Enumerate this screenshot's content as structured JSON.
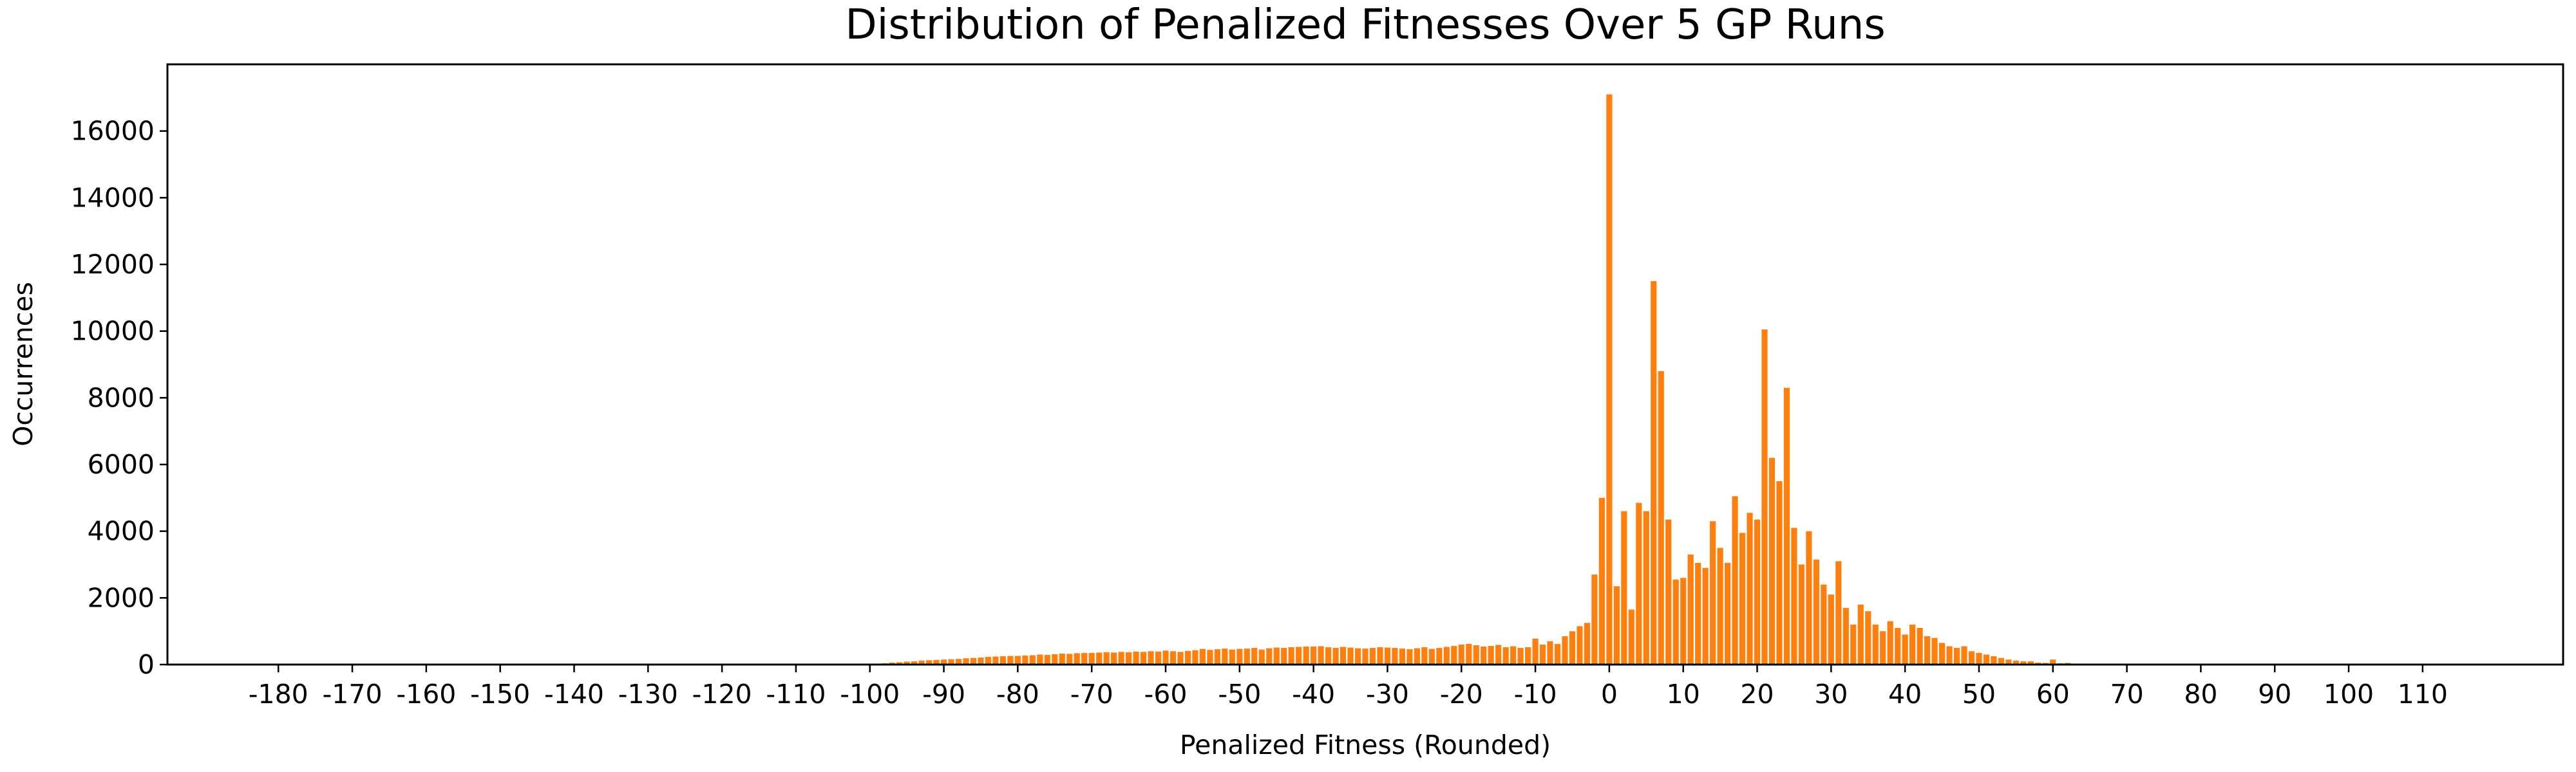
{
  "chart_data": {
    "type": "bar",
    "title": "Distribution of Penalized Fitnesses Over 5 GP Runs",
    "xlabel": "Penalized Fitness (Rounded)",
    "ylabel": "Occurrences",
    "color": "#ff7f0e",
    "x": [
      -100,
      -99,
      -98,
      -97,
      -96,
      -95,
      -94,
      -93,
      -92,
      -91,
      -90,
      -89,
      -88,
      -87,
      -86,
      -85,
      -84,
      -83,
      -82,
      -81,
      -80,
      -79,
      -78,
      -77,
      -76,
      -75,
      -74,
      -73,
      -72,
      -71,
      -70,
      -69,
      -68,
      -67,
      -66,
      -65,
      -64,
      -63,
      -62,
      -61,
      -60,
      -59,
      -58,
      -57,
      -56,
      -55,
      -54,
      -53,
      -52,
      -51,
      -50,
      -49,
      -48,
      -47,
      -46,
      -45,
      -44,
      -43,
      -42,
      -41,
      -40,
      -39,
      -38,
      -37,
      -36,
      -35,
      -34,
      -33,
      -32,
      -31,
      -30,
      -29,
      -28,
      -27,
      -26,
      -25,
      -24,
      -23,
      -22,
      -21,
      -20,
      -19,
      -18,
      -17,
      -16,
      -15,
      -14,
      -13,
      -12,
      -11,
      -10,
      -9,
      -8,
      -7,
      -6,
      -5,
      -4,
      -3,
      -2,
      -1,
      0,
      1,
      2,
      3,
      4,
      5,
      6,
      7,
      8,
      9,
      10,
      11,
      12,
      13,
      14,
      15,
      16,
      17,
      18,
      19,
      20,
      21,
      22,
      23,
      24,
      25,
      26,
      27,
      28,
      29,
      30,
      31,
      32,
      33,
      34,
      35,
      36,
      37,
      38,
      39,
      40,
      41,
      42,
      43,
      44,
      45,
      46,
      47,
      48,
      49,
      50,
      51,
      52,
      53,
      54,
      55,
      56,
      57,
      58,
      59,
      60,
      61,
      62,
      63,
      64,
      65,
      66,
      67,
      68,
      69,
      70
    ],
    "values": [
      20,
      30,
      40,
      60,
      70,
      90,
      100,
      120,
      130,
      140,
      150,
      160,
      170,
      190,
      200,
      210,
      230,
      240,
      250,
      260,
      260,
      270,
      280,
      300,
      290,
      310,
      330,
      320,
      340,
      350,
      350,
      360,
      370,
      360,
      380,
      370,
      390,
      380,
      400,
      390,
      420,
      400,
      380,
      410,
      430,
      470,
      440,
      460,
      480,
      450,
      470,
      480,
      500,
      450,
      490,
      510,
      500,
      520,
      530,
      540,
      540,
      550,
      520,
      500,
      530,
      510,
      490,
      480,
      500,
      520,
      510,
      500,
      480,
      460,
      490,
      520,
      470,
      500,
      530,
      560,
      600,
      620,
      580,
      540,
      560,
      590,
      520,
      550,
      500,
      520,
      780,
      600,
      700,
      620,
      850,
      1000,
      1150,
      1250,
      2700,
      5000,
      17100,
      2350,
      4600,
      1650,
      4850,
      4600,
      11500,
      8800,
      4350,
      2550,
      2600,
      3300,
      3050,
      2900,
      4300,
      3500,
      3050,
      5050,
      3950,
      4550,
      4350,
      10050,
      6200,
      5500,
      8300,
      4100,
      3000,
      4000,
      3150,
      2400,
      2100,
      3100,
      1700,
      1200,
      1800,
      1600,
      1200,
      1000,
      1300,
      1100,
      900,
      1200,
      1100,
      850,
      800,
      650,
      550,
      500,
      550,
      400,
      350,
      300,
      250,
      200,
      150,
      120,
      100,
      100,
      60,
      50,
      150,
      40,
      50,
      30,
      25,
      20,
      15,
      12,
      10,
      10,
      10
    ],
    "xlim": [
      -195,
      129
    ],
    "ylim": [
      0,
      18000
    ],
    "xticks": [
      -180,
      -170,
      -160,
      -150,
      -140,
      -130,
      -120,
      -110,
      -100,
      -90,
      -80,
      -70,
      -60,
      -50,
      -40,
      -30,
      -20,
      -10,
      0,
      10,
      20,
      30,
      40,
      50,
      60,
      70,
      80,
      90,
      100,
      110
    ],
    "yticks": [
      0,
      2000,
      4000,
      6000,
      8000,
      10000,
      12000,
      14000,
      16000
    ]
  }
}
